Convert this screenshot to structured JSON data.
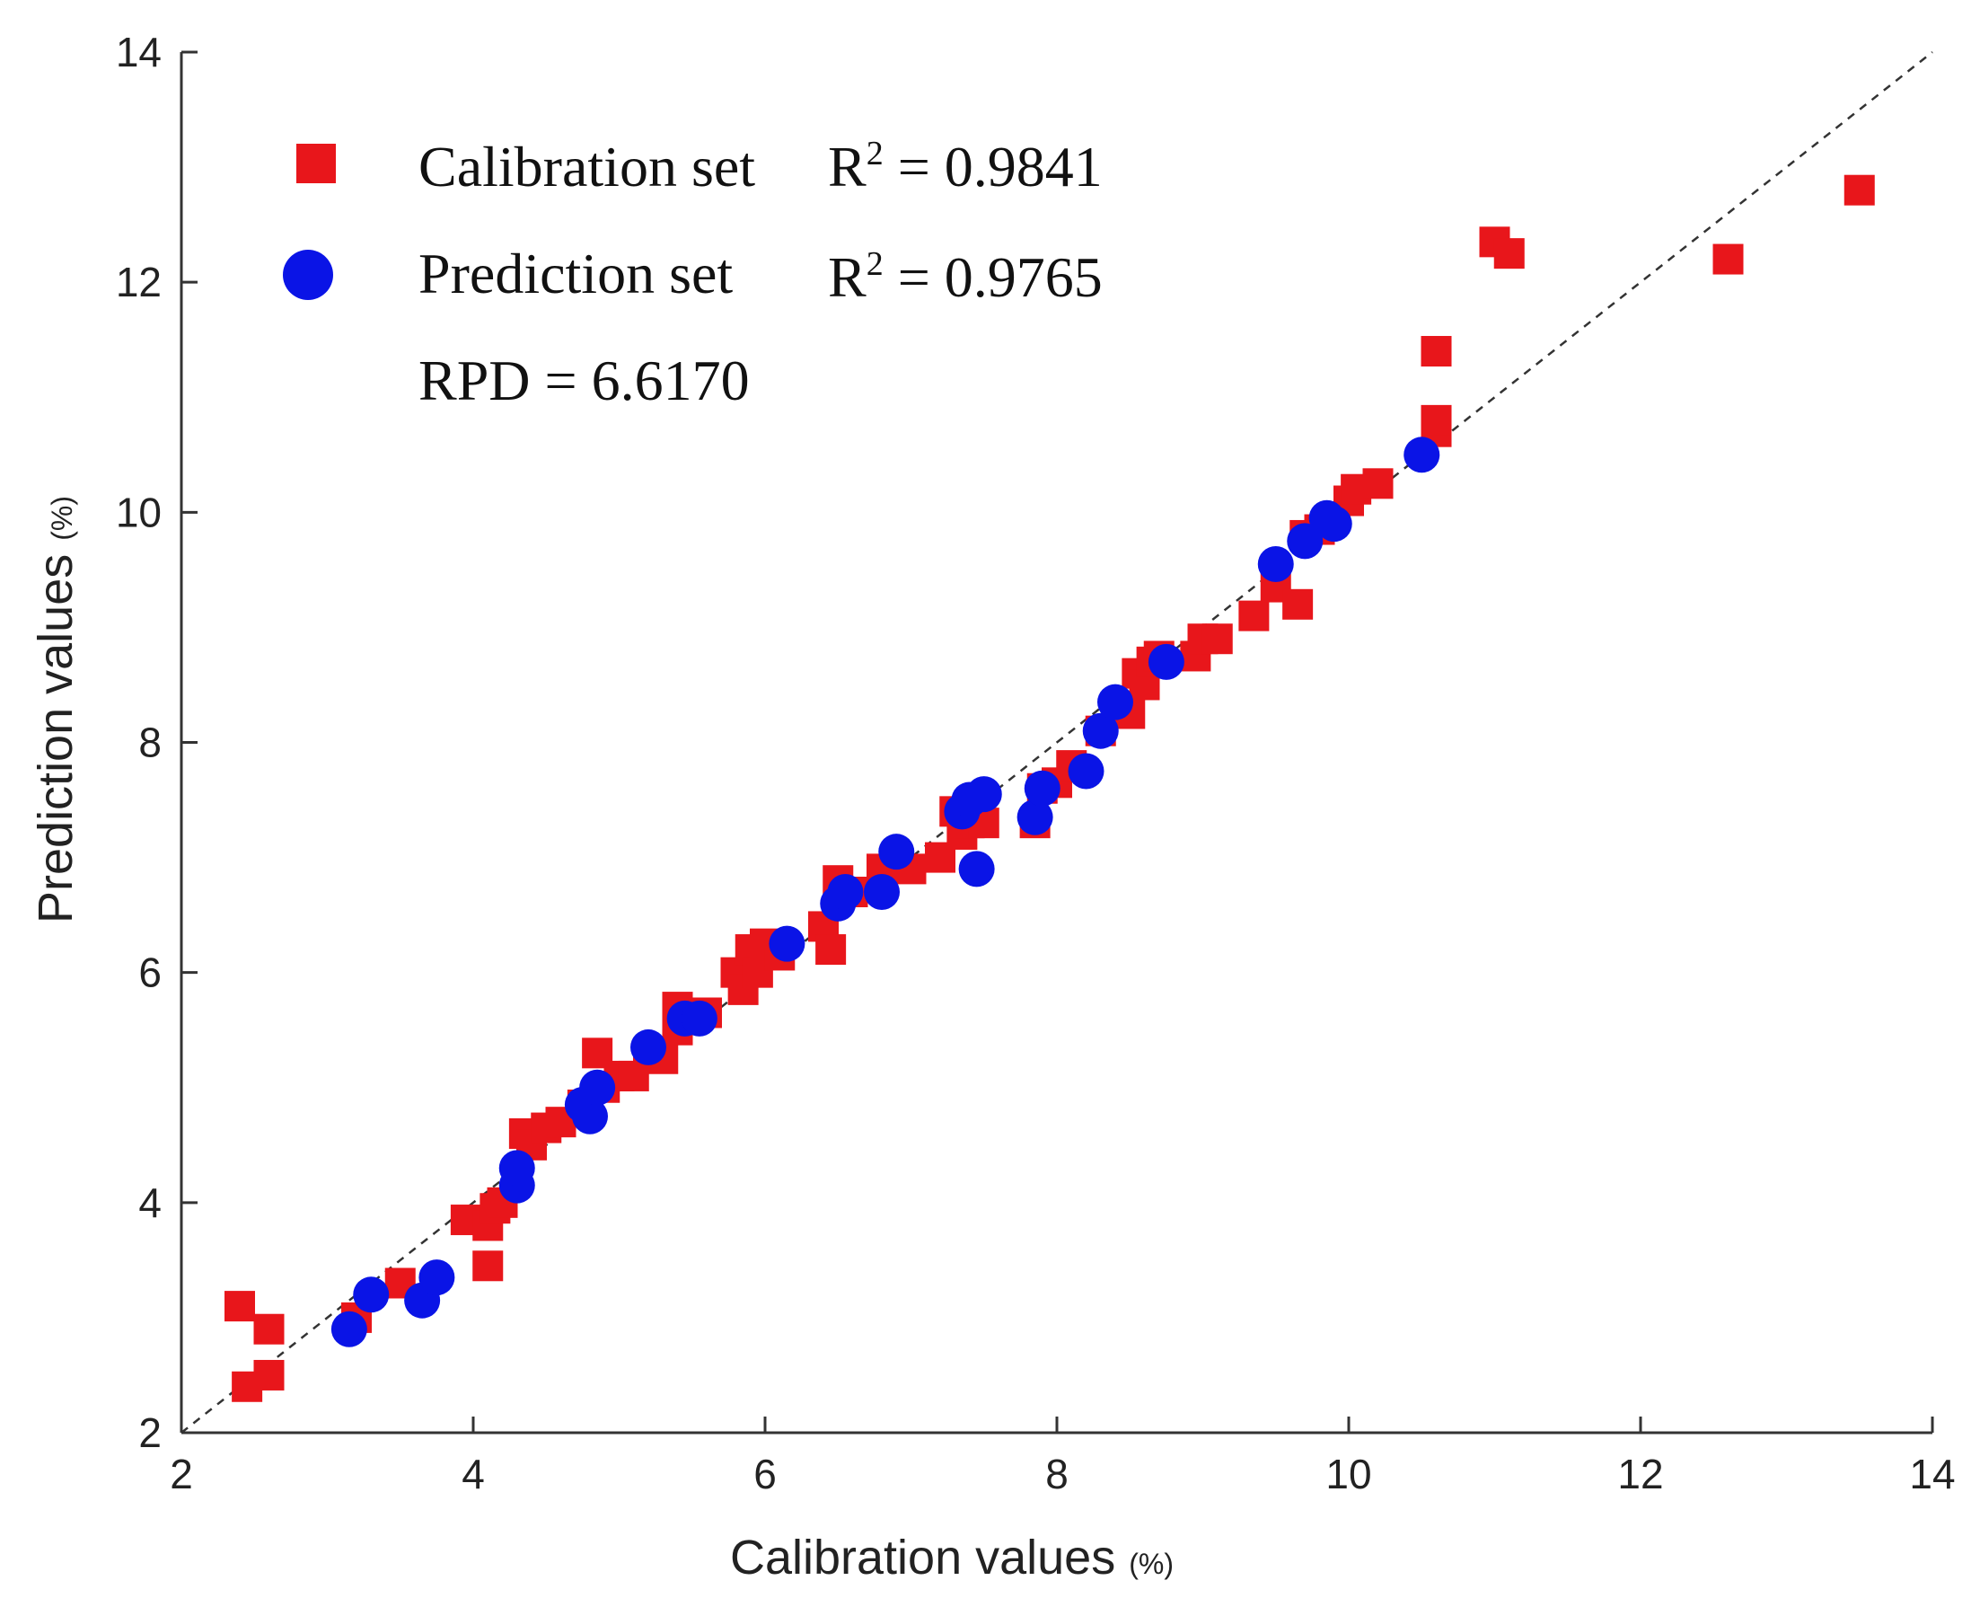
{
  "chart_data": {
    "type": "scatter",
    "xlabel": "Calibration values",
    "xlabel_unit": "(%)",
    "ylabel": "Prediction values",
    "ylabel_unit": "(%)",
    "xlim": [
      2,
      14
    ],
    "ylim": [
      2,
      14
    ],
    "xticks": [
      2,
      4,
      6,
      8,
      10,
      12,
      14
    ],
    "yticks": [
      2,
      4,
      6,
      8,
      10,
      12,
      14
    ],
    "reference_line": "y = x (dashed)",
    "legend_position": "top-left",
    "colors": {
      "calibration": "#e8161b",
      "prediction": "#0a14e6",
      "reference": "#333333"
    },
    "legend": {
      "calibration": {
        "label": "Calibration set",
        "r2_prefix": "R",
        "r2_sup": "2",
        "r2_value": " = 0.9841"
      },
      "prediction": {
        "label": "Prediction set",
        "r2_prefix": "R",
        "r2_sup": "2",
        "r2_value": " = 0.9765"
      },
      "rpd": "RPD = 6.6170"
    },
    "series": [
      {
        "name": "Calibration set",
        "marker": "square",
        "points": [
          [
            2.4,
            3.1
          ],
          [
            2.45,
            2.4
          ],
          [
            2.6,
            2.9
          ],
          [
            2.6,
            2.5
          ],
          [
            3.2,
            3.0
          ],
          [
            3.5,
            3.3
          ],
          [
            3.95,
            3.85
          ],
          [
            4.1,
            3.45
          ],
          [
            4.1,
            3.8
          ],
          [
            4.15,
            3.95
          ],
          [
            4.2,
            4.0
          ],
          [
            4.3,
            4.2
          ],
          [
            4.35,
            4.6
          ],
          [
            4.4,
            4.5
          ],
          [
            4.5,
            4.65
          ],
          [
            4.6,
            4.7
          ],
          [
            4.75,
            4.85
          ],
          [
            4.85,
            5.3
          ],
          [
            4.9,
            5.0
          ],
          [
            5.0,
            5.1
          ],
          [
            5.1,
            5.1
          ],
          [
            5.2,
            5.3
          ],
          [
            5.3,
            5.25
          ],
          [
            5.4,
            5.5
          ],
          [
            5.4,
            5.7
          ],
          [
            5.6,
            5.65
          ],
          [
            5.8,
            6.0
          ],
          [
            5.85,
            5.85
          ],
          [
            5.9,
            6.2
          ],
          [
            5.95,
            6.0
          ],
          [
            6.0,
            6.25
          ],
          [
            6.1,
            6.15
          ],
          [
            6.4,
            6.4
          ],
          [
            6.45,
            6.2
          ],
          [
            6.5,
            6.8
          ],
          [
            6.6,
            6.7
          ],
          [
            6.8,
            6.9
          ],
          [
            7.0,
            6.9
          ],
          [
            7.2,
            7.0
          ],
          [
            7.3,
            7.4
          ],
          [
            7.35,
            7.2
          ],
          [
            7.4,
            7.3
          ],
          [
            7.5,
            7.3
          ],
          [
            7.85,
            7.3
          ],
          [
            7.9,
            7.6
          ],
          [
            8.0,
            7.65
          ],
          [
            8.1,
            7.8
          ],
          [
            8.3,
            8.1
          ],
          [
            8.5,
            8.25
          ],
          [
            8.55,
            8.6
          ],
          [
            8.6,
            8.5
          ],
          [
            8.65,
            8.7
          ],
          [
            8.7,
            8.75
          ],
          [
            8.95,
            8.75
          ],
          [
            9.0,
            8.9
          ],
          [
            9.1,
            8.9
          ],
          [
            9.35,
            9.1
          ],
          [
            9.5,
            9.35
          ],
          [
            9.65,
            9.2
          ],
          [
            9.7,
            9.8
          ],
          [
            9.8,
            9.85
          ],
          [
            10.0,
            10.1
          ],
          [
            10.05,
            10.2
          ],
          [
            10.2,
            10.25
          ],
          [
            10.6,
            10.7
          ],
          [
            10.6,
            10.8
          ],
          [
            10.6,
            11.4
          ],
          [
            11.0,
            12.35
          ],
          [
            11.1,
            12.25
          ],
          [
            12.6,
            12.2
          ],
          [
            13.5,
            12.8
          ]
        ]
      },
      {
        "name": "Prediction set",
        "marker": "circle",
        "points": [
          [
            3.15,
            2.9
          ],
          [
            3.3,
            3.2
          ],
          [
            3.65,
            3.15
          ],
          [
            3.75,
            3.35
          ],
          [
            4.3,
            4.15
          ],
          [
            4.3,
            4.3
          ],
          [
            4.75,
            4.85
          ],
          [
            4.8,
            4.75
          ],
          [
            4.85,
            5.0
          ],
          [
            5.2,
            5.35
          ],
          [
            5.45,
            5.6
          ],
          [
            5.55,
            5.6
          ],
          [
            6.15,
            6.25
          ],
          [
            6.5,
            6.6
          ],
          [
            6.55,
            6.7
          ],
          [
            6.8,
            6.7
          ],
          [
            6.9,
            7.05
          ],
          [
            7.35,
            7.4
          ],
          [
            7.4,
            7.5
          ],
          [
            7.45,
            6.9
          ],
          [
            7.5,
            7.55
          ],
          [
            7.85,
            7.35
          ],
          [
            7.9,
            7.6
          ],
          [
            8.2,
            7.75
          ],
          [
            8.3,
            8.1
          ],
          [
            8.4,
            8.35
          ],
          [
            8.75,
            8.7
          ],
          [
            9.5,
            9.55
          ],
          [
            9.7,
            9.75
          ],
          [
            9.85,
            9.95
          ],
          [
            9.9,
            9.9
          ],
          [
            10.5,
            10.5
          ]
        ]
      }
    ]
  }
}
